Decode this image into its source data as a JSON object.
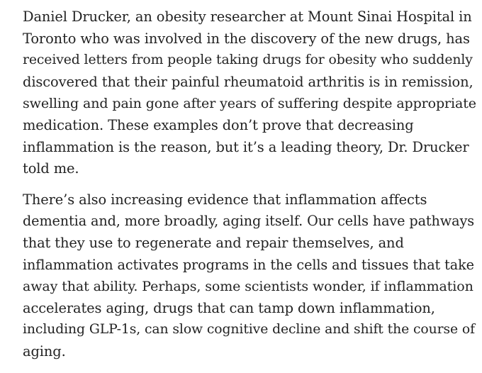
{
  "article": {
    "paragraphs": [
      {
        "lines": [
          "Daniel Drucker, an obesity researcher at Mount Sinai Hospital in",
          "Toronto who was involved in the discovery of the new drugs, has",
          "received letters from people taking drugs for obesity who suddenly",
          "discovered that their painful rheumatoid arthritis is in remission,",
          "swelling and pain gone after years of suffering despite appropriate",
          "medication. These examples don’t prove that decreasing",
          "inflammation is the reason, but it’s a leading theory, Dr. Drucker",
          "told me."
        ]
      },
      {
        "lines": [
          "There’s also increasing evidence that inflammation affects",
          "dementia and, more broadly, aging itself. Our cells have pathways",
          "that they use to regenerate and repair themselves, and",
          "inflammation activates programs in the cells and tissues that take",
          "away that ability. Perhaps, some scientists wonder, if inflammation",
          "accelerates aging, drugs that can tamp down inflammation,",
          "including GLP-1s, can slow cognitive decline and shift the course of",
          "aging."
        ]
      }
    ]
  }
}
